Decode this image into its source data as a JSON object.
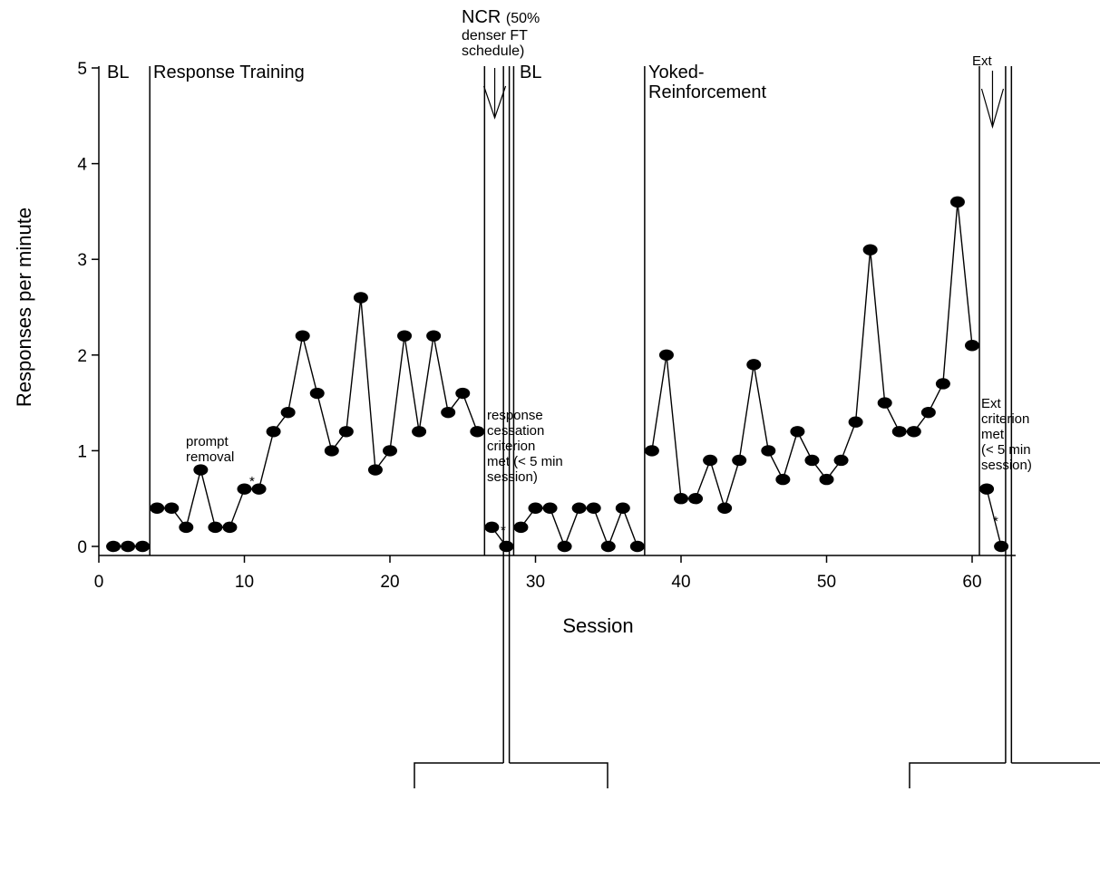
{
  "chart_data": {
    "type": "line",
    "title": "",
    "xlabel": "Session",
    "ylabel": "Responses per minute",
    "xlim": [
      0,
      68
    ],
    "ylim": [
      0,
      5
    ],
    "xticks": [
      "0",
      "10",
      "20",
      "30",
      "40",
      "50",
      "60"
    ],
    "yticks": [
      "0",
      "1",
      "2",
      "3",
      "4",
      "5"
    ],
    "grid": false,
    "marker": "filled-ellipse",
    "colors": {
      "line": "#000000",
      "marker": "#000000",
      "background": "#ffffff"
    },
    "phases": [
      {
        "label": "BL",
        "start": 0.5,
        "end": 3.5
      },
      {
        "label": "Response Training",
        "start": 3.5,
        "end": 26.5
      },
      {
        "label": "NCR (50% denser FT schedule)",
        "start": 26.5,
        "end": 28.5
      },
      {
        "label": "BL",
        "start": 28.5,
        "end": 37.5
      },
      {
        "label": "Yoked-Reinforcement",
        "start": 37.5,
        "end": 60.5
      },
      {
        "label": "Ext",
        "start": 60.5,
        "end": 62.5
      }
    ],
    "phase_lines": [
      3.5,
      26.5,
      27.8,
      28.2,
      28.5,
      37.5,
      60.5,
      62.3,
      62.7
    ],
    "series": [
      {
        "x": [
          1,
          2,
          3
        ],
        "y": [
          0,
          0,
          0
        ]
      },
      {
        "x": [
          4,
          5,
          6,
          7,
          8,
          9,
          10,
          11,
          12,
          13,
          14,
          15,
          16,
          17,
          18,
          19,
          20,
          21,
          22,
          23,
          24,
          25,
          26
        ],
        "y": [
          0.4,
          0.4,
          0.2,
          0.8,
          0.2,
          0.2,
          0.6,
          0.6,
          1.2,
          1.4,
          2.2,
          1.6,
          1.0,
          1.2,
          2.6,
          0.8,
          1.0,
          2.2,
          1.2,
          2.2,
          1.4,
          1.6,
          1.2
        ]
      },
      {
        "x": [
          27,
          28
        ],
        "y": [
          0.2,
          0
        ]
      },
      {
        "x": [
          29,
          30,
          31,
          32,
          33,
          34,
          35,
          36,
          37
        ],
        "y": [
          0.2,
          0.4,
          0.4,
          0,
          0.4,
          0.4,
          0,
          0.4,
          0
        ]
      },
      {
        "x": [
          38,
          39,
          40,
          41,
          42,
          43,
          44,
          45,
          46,
          47,
          48,
          49,
          50,
          51,
          52,
          53,
          54,
          55,
          56,
          57,
          58,
          59,
          60
        ],
        "y": [
          1.0,
          2.0,
          0.5,
          0.5,
          0.9,
          0.4,
          0.9,
          1.9,
          1.0,
          0.7,
          1.2,
          0.9,
          0.7,
          0.9,
          1.3,
          3.1,
          1.5,
          1.2,
          1.2,
          1.4,
          1.7,
          3.6,
          2.1
        ]
      },
      {
        "x": [
          61,
          62
        ],
        "y": [
          0.6,
          0
        ]
      }
    ],
    "annotations": [
      {
        "lines": [
          "prompt",
          "removal"
        ],
        "x": 8,
        "y": 0.85
      },
      {
        "lines": [
          "*"
        ],
        "x": 10.8,
        "y": 0.65
      },
      {
        "lines": [
          "*"
        ],
        "x": 28.0,
        "y": 0.05
      },
      {
        "lines": [
          "response",
          "cessation",
          "criterion",
          "met (< 5 min",
          "session)"
        ],
        "x": 26.6,
        "y": 1.4
      },
      {
        "lines": [
          "Ext",
          "criterion",
          "met",
          "(< 5 min",
          "session)"
        ],
        "x": 60.7,
        "y": 1.5
      },
      {
        "lines": [
          "*"
        ],
        "x": 62.0,
        "y": 0.2
      }
    ],
    "ncr_label": {
      "main": "NCR",
      "rest": [
        "(50%",
        "denser FT",
        "schedule)"
      ]
    },
    "ext_label": "Ext"
  }
}
